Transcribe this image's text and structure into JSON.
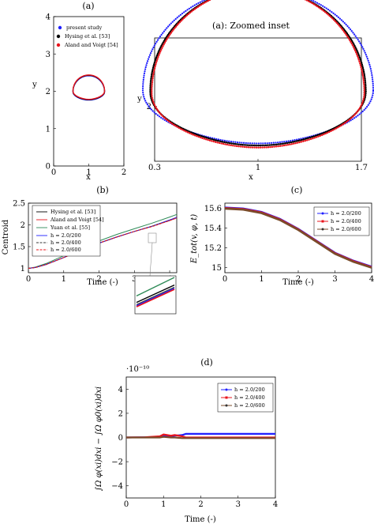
{
  "chart_data": [
    {
      "type": "line",
      "panel": "(a)",
      "title": "(a)",
      "xlabel": "x",
      "ylabel": "y",
      "xlim": [
        0,
        2
      ],
      "ylim": [
        0,
        4
      ],
      "xticks": [
        "0",
        "1",
        "2"
      ],
      "yticks": [
        "0",
        "1",
        "2",
        "3",
        "4"
      ],
      "legend_position": "top-right",
      "series": [
        {
          "name": "present study",
          "color": "#1f1fff",
          "center": [
            1.0,
            2.0
          ],
          "rx": 0.45,
          "ry": 0.45
        },
        {
          "name": "Hysing et al. [53]",
          "color": "#000000",
          "center": [
            1.0,
            2.0
          ],
          "rx": 0.45,
          "ry": 0.45
        },
        {
          "name": "Aland and Voigt [54]",
          "color": "#e8141c",
          "center": [
            1.0,
            2.0
          ],
          "rx": 0.45,
          "ry": 0.45
        }
      ]
    },
    {
      "type": "line",
      "panel": "(a) zoomed",
      "title": "(a): Zoomed inset",
      "xlabel": "x",
      "ylabel": "y",
      "xlim": [
        0.3,
        1.7
      ],
      "ylim": [
        1.6,
        2.5
      ],
      "xticks": [
        "0.3",
        "1",
        "1.7"
      ],
      "yticks": [
        "2"
      ],
      "series": [
        {
          "name": "present study",
          "color": "#1f1fff"
        },
        {
          "name": "Hysing et al. [53]",
          "color": "#000000"
        },
        {
          "name": "Aland and Voigt [54]",
          "color": "#e8141c"
        }
      ]
    },
    {
      "type": "line",
      "panel": "(b)",
      "title": "(b)",
      "xlabel": "Time (-)",
      "ylabel": "Centroid",
      "xlim": [
        0,
        4.2
      ],
      "ylim": [
        0.9,
        2.5
      ],
      "xticks": [
        "0",
        "1",
        "2",
        "3",
        "4"
      ],
      "yticks": [
        "1",
        "1.5",
        "2",
        "2.5"
      ],
      "legend_position": "top-left",
      "x": [
        0,
        0.2,
        0.5,
        1.0,
        1.5,
        2.0,
        2.5,
        3.0,
        3.5,
        4.0,
        4.2
      ],
      "series": [
        {
          "name": "Hysing et al. [53]",
          "color": "#000000",
          "values": [
            1.0,
            1.02,
            1.09,
            1.25,
            1.42,
            1.58,
            1.72,
            1.85,
            1.97,
            2.11,
            2.17
          ]
        },
        {
          "name": "Aland and Voigt [54]",
          "color": "#e8141c",
          "values": [
            1.0,
            1.02,
            1.09,
            1.25,
            1.42,
            1.58,
            1.72,
            1.85,
            1.97,
            2.1,
            2.16
          ]
        },
        {
          "name": "Yuan et al. [55]",
          "color": "#2e8b57",
          "values": [
            1.0,
            1.03,
            1.11,
            1.29,
            1.47,
            1.63,
            1.78,
            1.91,
            2.04,
            2.18,
            2.24
          ]
        },
        {
          "name": "h = 2.0/200",
          "color": "#1f1fff",
          "values": [
            1.0,
            1.02,
            1.09,
            1.25,
            1.42,
            1.58,
            1.72,
            1.85,
            1.97,
            2.11,
            2.17
          ]
        },
        {
          "name": "h = 2.0/400",
          "color": "#3a3a3a",
          "values": [
            1.0,
            1.02,
            1.09,
            1.25,
            1.42,
            1.58,
            1.72,
            1.85,
            1.97,
            2.1,
            2.16
          ]
        },
        {
          "name": "h = 2.0/600",
          "color": "#e8141c",
          "values": [
            1.0,
            1.02,
            1.09,
            1.25,
            1.42,
            1.58,
            1.72,
            1.85,
            1.96,
            2.1,
            2.16
          ]
        }
      ]
    },
    {
      "type": "line",
      "panel": "(c)",
      "title": "(c)",
      "xlabel": "Time (-)",
      "ylabel": "E_tot(v, φ, t)",
      "xlim": [
        0,
        4
      ],
      "ylim": [
        14.95,
        15.65
      ],
      "xticks": [
        "0",
        "1",
        "2",
        "3",
        "4"
      ],
      "yticks": [
        "15",
        "15.2",
        "15.4",
        "15.6"
      ],
      "legend_position": "top-right",
      "x": [
        0,
        0.5,
        1.0,
        1.5,
        2.0,
        2.5,
        3.0,
        3.5,
        4.0
      ],
      "series": [
        {
          "name": "h = 2.0/200",
          "color": "#1f1fff",
          "values": [
            15.605,
            15.595,
            15.56,
            15.49,
            15.39,
            15.27,
            15.15,
            15.07,
            15.01
          ]
        },
        {
          "name": "h = 2.0/400",
          "color": "#e8141c",
          "values": [
            15.6,
            15.59,
            15.555,
            15.485,
            15.385,
            15.265,
            15.145,
            15.065,
            15.005
          ]
        },
        {
          "name": "h = 2.0/600",
          "color": "#7a4b2a",
          "values": [
            15.595,
            15.585,
            15.55,
            15.48,
            15.38,
            15.26,
            15.14,
            15.06,
            15.0
          ]
        }
      ]
    },
    {
      "type": "line",
      "panel": "(d)",
      "title": "(d)",
      "xlabel": "Time (-)",
      "ylabel": "∫Ω φ(xi)dxi − ∫Ω φ0(xi)dxi",
      "multiplier": "·10⁻¹⁰",
      "xlim": [
        0,
        4
      ],
      "ylim": [
        -5,
        5
      ],
      "xticks": [
        "0",
        "1",
        "2",
        "3",
        "4"
      ],
      "yticks": [
        "−4",
        "−2",
        "0",
        "2",
        "4"
      ],
      "legend_position": "top-right",
      "x": [
        0,
        0.5,
        0.9,
        1.0,
        1.2,
        1.3,
        1.5,
        1.6,
        2.0,
        3.0,
        4.0
      ],
      "series": [
        {
          "name": "h = 2.0/200",
          "color": "#1f1fff",
          "values": [
            0,
            0.02,
            0.05,
            0.1,
            0.1,
            0.15,
            0.2,
            0.3,
            0.3,
            0.3,
            0.3
          ]
        },
        {
          "name": "h = 2.0/400",
          "color": "#e8141c",
          "values": [
            0,
            0.02,
            0.1,
            0.25,
            0.15,
            0.2,
            0.1,
            0.0,
            0.0,
            0.0,
            0.0
          ]
        },
        {
          "name": "h = 2.0/600",
          "color": "#7a4b2a",
          "values": [
            0,
            0.0,
            0.0,
            0.05,
            0.0,
            0.0,
            -0.05,
            -0.05,
            -0.05,
            -0.05,
            -0.05
          ]
        }
      ]
    }
  ],
  "legend_a": [
    "present study",
    "Hysing et al. [53]",
    "Aland and Voigt [54]"
  ],
  "legend_b": [
    "Hysing et al. [53]",
    "Aland and Voigt [54]",
    "Yuan et al. [55]",
    "h = 2.0/200",
    "h = 2.0/400",
    "h = 2.0/600"
  ],
  "legend_h": [
    "h = 2.0/200",
    "h = 2.0/400",
    "h = 2.0/600"
  ]
}
